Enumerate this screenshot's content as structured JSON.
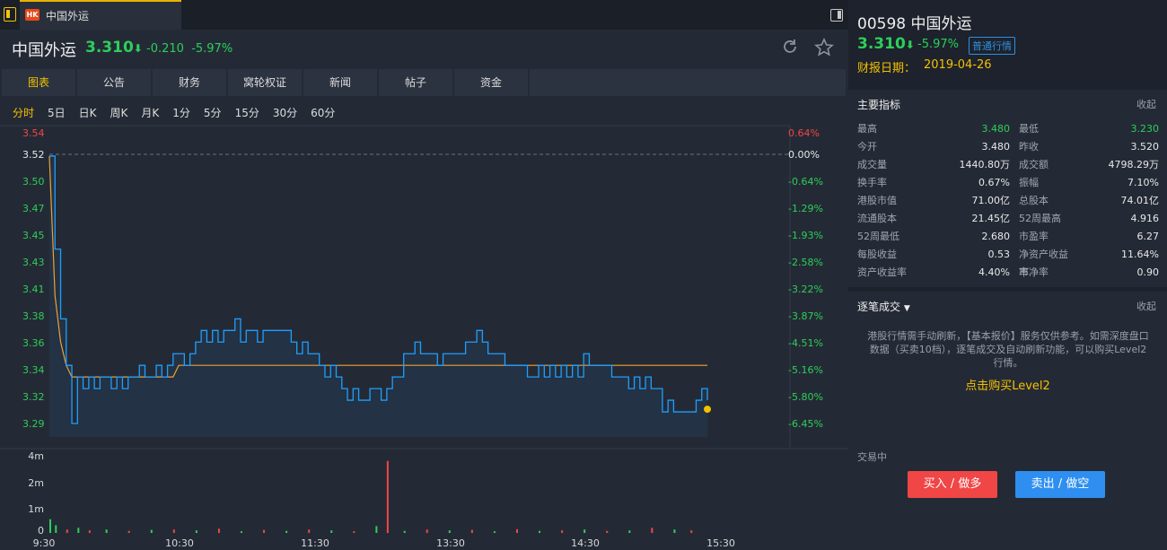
{
  "tab": {
    "market_badge": "HK",
    "title": "中国外运"
  },
  "header": {
    "name": "中国外运",
    "price": "3.310",
    "change": "-0.210",
    "change_pct": "-5.97%"
  },
  "tabs": [
    "图表",
    "公告",
    "财务",
    "窝轮权证",
    "新闻",
    "帖子",
    "资金"
  ],
  "periods": [
    "分时",
    "5日",
    "日K",
    "周K",
    "月K",
    "1分",
    "5分",
    "15分",
    "30分",
    "60分"
  ],
  "colors": {
    "up": "#f04646",
    "down": "#2ccf5a",
    "accent": "#f5c000",
    "price_line": "#1e9fff",
    "avg_line": "#f0a030"
  },
  "chart_data": {
    "type": "line",
    "series": [
      {
        "values": [
          3.52,
          3.44,
          3.38,
          3.34,
          3.29,
          3.33,
          3.32,
          3.33,
          3.32,
          3.33,
          3.33,
          3.32,
          3.33,
          3.32,
          3.33,
          3.33,
          3.34,
          3.33,
          3.33,
          3.34,
          3.33,
          3.34,
          3.35,
          3.35,
          3.34,
          3.35,
          3.36,
          3.37,
          3.36,
          3.37,
          3.36,
          3.37,
          3.37,
          3.38,
          3.36,
          3.37,
          3.37,
          3.36,
          3.37,
          3.37,
          3.37,
          3.37,
          3.37,
          3.36,
          3.35,
          3.36,
          3.35,
          3.35,
          3.34,
          3.33,
          3.34,
          3.33,
          3.32,
          3.31,
          3.32,
          3.31,
          3.31,
          3.32,
          3.32,
          3.31,
          3.32,
          3.33,
          3.33,
          3.35,
          3.35,
          3.36,
          3.35,
          3.35,
          3.35,
          3.34,
          3.35,
          3.35,
          3.35,
          3.35,
          3.36,
          3.36,
          3.37,
          3.36,
          3.35,
          3.35,
          3.35,
          3.34,
          3.34,
          3.34,
          3.34,
          3.33,
          3.33,
          3.34,
          3.33,
          3.34,
          3.33,
          3.34,
          3.33,
          3.34,
          3.33,
          3.35,
          3.34,
          3.34,
          3.34,
          3.34,
          3.33,
          3.33,
          3.33,
          3.32,
          3.33,
          3.32,
          3.33,
          3.32,
          3.32,
          3.3,
          3.31,
          3.3,
          3.3,
          3.3,
          3.3,
          3.31,
          3.32,
          3.31
        ]
      },
      {
        "values": [
          3.52,
          3.4,
          3.36,
          3.34,
          3.33,
          3.33,
          3.33,
          3.33,
          3.33,
          3.33,
          3.33,
          3.33,
          3.33,
          3.33,
          3.33,
          3.33,
          3.33,
          3.33,
          3.33,
          3.33,
          3.33,
          3.33,
          3.33,
          3.34,
          3.34,
          3.34,
          3.34,
          3.34,
          3.34,
          3.34,
          3.34,
          3.34,
          3.34,
          3.34,
          3.34,
          3.34,
          3.34,
          3.34,
          3.34,
          3.34,
          3.34,
          3.34,
          3.34,
          3.34,
          3.34,
          3.34,
          3.34,
          3.34,
          3.34,
          3.34,
          3.34,
          3.34,
          3.34,
          3.34,
          3.34,
          3.34,
          3.34,
          3.34,
          3.34,
          3.34,
          3.34,
          3.34,
          3.34,
          3.34,
          3.34,
          3.34,
          3.34,
          3.34,
          3.34,
          3.34,
          3.34,
          3.34,
          3.34,
          3.34,
          3.34,
          3.34,
          3.34,
          3.34,
          3.34,
          3.34,
          3.34,
          3.34,
          3.34,
          3.34,
          3.34,
          3.34,
          3.34,
          3.34,
          3.34,
          3.34,
          3.34,
          3.34,
          3.34,
          3.34,
          3.34,
          3.34,
          3.34,
          3.34,
          3.34,
          3.34,
          3.34,
          3.34,
          3.34,
          3.34,
          3.34,
          3.34,
          3.34,
          3.34,
          3.34,
          3.34,
          3.34,
          3.34,
          3.34,
          3.34,
          3.34,
          3.34,
          3.34,
          3.34
        ]
      }
    ],
    "ylim": [
      3.29,
      3.54
    ],
    "y_ticks": [
      "3.54",
      "3.52",
      "3.50",
      "3.47",
      "3.45",
      "3.43",
      "3.41",
      "3.38",
      "3.36",
      "3.34",
      "3.32",
      "3.29"
    ],
    "pct_ticks": [
      "0.64%",
      "0.00%",
      "-0.64%",
      "-1.29%",
      "-1.93%",
      "-2.58%",
      "-3.22%",
      "-3.87%",
      "-4.51%",
      "-5.16%",
      "-5.80%",
      "-6.45%"
    ],
    "prev_close": 3.52,
    "x_ticks": [
      "9:30",
      "10:30",
      "11:30",
      "13:30",
      "14:30",
      "15:30"
    ],
    "volume": {
      "y_ticks": [
        "4m",
        "2m",
        "1m",
        "0"
      ],
      "ylim": [
        0,
        4.5
      ],
      "bars": [
        {
          "x": 0,
          "v": 0.8,
          "up": false
        },
        {
          "x": 1,
          "v": 0.45,
          "up": false
        },
        {
          "x": 3,
          "v": 0.2,
          "up": true
        },
        {
          "x": 5,
          "v": 0.3,
          "up": false
        },
        {
          "x": 7,
          "v": 0.15,
          "up": true
        },
        {
          "x": 10,
          "v": 0.2,
          "up": false
        },
        {
          "x": 14,
          "v": 0.12,
          "up": true
        },
        {
          "x": 18,
          "v": 0.18,
          "up": false
        },
        {
          "x": 22,
          "v": 0.2,
          "up": true
        },
        {
          "x": 26,
          "v": 0.15,
          "up": false
        },
        {
          "x": 30,
          "v": 0.25,
          "up": true
        },
        {
          "x": 34,
          "v": 0.1,
          "up": false
        },
        {
          "x": 38,
          "v": 0.18,
          "up": true
        },
        {
          "x": 42,
          "v": 0.12,
          "up": false
        },
        {
          "x": 46,
          "v": 0.2,
          "up": true
        },
        {
          "x": 50,
          "v": 0.15,
          "up": false
        },
        {
          "x": 54,
          "v": 0.1,
          "up": true
        },
        {
          "x": 58,
          "v": 0.4,
          "up": false
        },
        {
          "x": 60,
          "v": 4.2,
          "up": true
        },
        {
          "x": 63,
          "v": 0.12,
          "up": false
        },
        {
          "x": 67,
          "v": 0.2,
          "up": true
        },
        {
          "x": 71,
          "v": 0.15,
          "up": false
        },
        {
          "x": 75,
          "v": 0.18,
          "up": true
        },
        {
          "x": 79,
          "v": 0.1,
          "up": false
        },
        {
          "x": 83,
          "v": 0.22,
          "up": true
        },
        {
          "x": 87,
          "v": 0.12,
          "up": false
        },
        {
          "x": 91,
          "v": 0.15,
          "up": true
        },
        {
          "x": 95,
          "v": 0.2,
          "up": false
        },
        {
          "x": 99,
          "v": 0.12,
          "up": true
        },
        {
          "x": 103,
          "v": 0.15,
          "up": false
        },
        {
          "x": 107,
          "v": 0.3,
          "up": true
        },
        {
          "x": 111,
          "v": 0.2,
          "up": false
        },
        {
          "x": 114,
          "v": 0.15,
          "up": true
        }
      ]
    }
  },
  "right": {
    "title": "00598 中国外运",
    "price": "3.310",
    "change_pct": "-5.97%",
    "badge": "普通行情",
    "report_label": "财报日期：",
    "report_date": "2019-04-26",
    "indicators_title": "主要指标",
    "collapse": "收起",
    "indicators": [
      [
        "最高",
        "3.480",
        "最低",
        "3.230"
      ],
      [
        "今开",
        "3.480",
        "昨收",
        "3.520"
      ],
      [
        "成交量",
        "1440.80万",
        "成交额",
        "4798.29万"
      ],
      [
        "换手率",
        "0.67%",
        "振幅",
        "7.10%"
      ],
      [
        "港股市值",
        "71.00亿",
        "总股本",
        "74.01亿"
      ],
      [
        "流通股本",
        "21.45亿",
        "52周最高",
        "4.916"
      ],
      [
        "52周最低",
        "2.680",
        "市盈率",
        "6.27"
      ],
      [
        "每股收益",
        "0.53",
        "净资产收益率",
        "11.64%"
      ],
      [
        "资产收益率",
        "4.40%",
        "市净率",
        "0.90"
      ]
    ],
    "tick_title": "逐笔成交",
    "tick_collapse": "收起",
    "notice": "港股行情需手动刷新，【基本报价】服务仅供参考。如需深度盘口数据（买卖10档），逐笔成交及自动刷新功能，可以购买Level2行情。",
    "level2_link": "点击购买Level2",
    "trading_status": "交易中",
    "buy_label": "买入 / 做多",
    "sell_label": "卖出 / 做空"
  }
}
